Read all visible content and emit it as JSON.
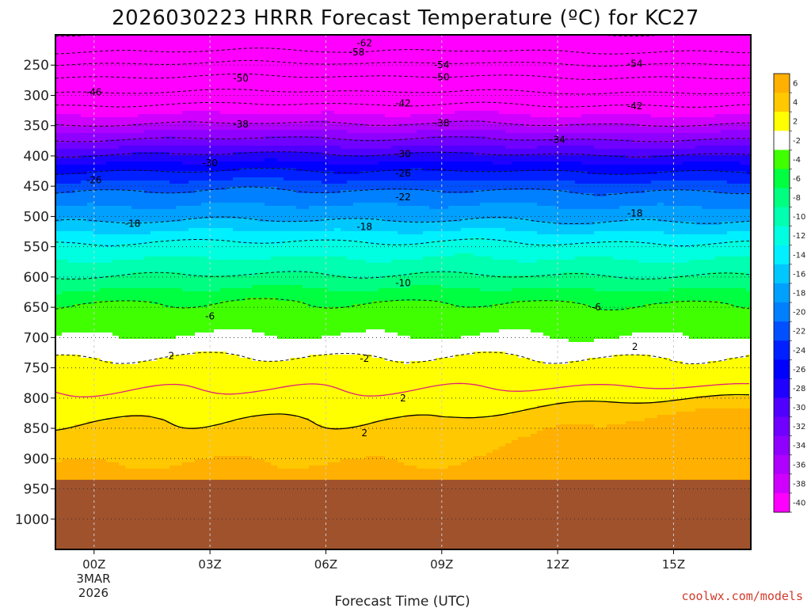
{
  "chart_data": {
    "type": "heatmap",
    "title": "2026030223 HRRR Forecast Temperature (ºC) for KC27",
    "xlabel": "Forecast Time (UTC)",
    "ylabel": "",
    "watermark": "coolwx.com/models",
    "date_label": [
      "3MAR",
      "2026"
    ],
    "x_range_hours": [
      -1,
      17
    ],
    "x_ticks": [
      {
        "h": 0,
        "label": "00Z"
      },
      {
        "h": 3,
        "label": "03Z"
      },
      {
        "h": 6,
        "label": "06Z"
      },
      {
        "h": 9,
        "label": "09Z"
      },
      {
        "h": 12,
        "label": "12Z"
      },
      {
        "h": 15,
        "label": "15Z"
      }
    ],
    "y_range_hpa": [
      200,
      1050
    ],
    "y_ticks": [
      250,
      300,
      350,
      400,
      450,
      500,
      550,
      600,
      650,
      700,
      750,
      800,
      850,
      900,
      950,
      1000
    ],
    "ground_top_hpa": 935,
    "ground_color": "#a0522d",
    "colorbar": {
      "labels": [
        "6",
        "4",
        "2",
        "-2",
        "-4",
        "-6",
        "-8",
        "-10",
        "-12",
        "-14",
        "-16",
        "-18",
        "-20",
        "-22",
        "-24",
        "-26",
        "-28",
        "-30",
        "-32",
        "-34",
        "-36",
        "-38",
        "-40"
      ],
      "colors": [
        "#ffb000",
        "#ffc800",
        "#ffff00",
        "#ffffff",
        "#40ff00",
        "#00ff40",
        "#00ff80",
        "#00ffb0",
        "#00ffe0",
        "#00f0ff",
        "#00c8ff",
        "#00a0ff",
        "#0080ff",
        "#0050ff",
        "#0020ff",
        "#0000ff",
        "#2000ff",
        "#5000ff",
        "#7000ff",
        "#9000ff",
        "#b000ff",
        "#d000ff",
        "#ff00ff"
      ]
    },
    "thresholds": [
      -40,
      -38,
      -36,
      -34,
      -32,
      -30,
      -28,
      -26,
      -24,
      -22,
      -20,
      -18,
      -16,
      -14,
      -12,
      -10,
      -8,
      -6,
      -4,
      -2,
      2,
      4,
      6
    ],
    "profile": [
      {
        "p": 200,
        "t": -62
      },
      {
        "p": 230,
        "t": -58
      },
      {
        "p": 250,
        "t": -54
      },
      {
        "p": 272,
        "t": -50
      },
      {
        "p": 297,
        "t": -46
      },
      {
        "p": 318,
        "t": -42
      },
      {
        "p": 350,
        "t": -38
      },
      {
        "p": 375,
        "t": -34
      },
      {
        "p": 400,
        "t": -30
      },
      {
        "p": 428,
        "t": -26
      },
      {
        "p": 460,
        "t": -22
      },
      {
        "p": 510,
        "t": -18
      },
      {
        "p": 545,
        "t": -14
      },
      {
        "p": 600,
        "t": -10
      },
      {
        "p": 645,
        "t": -6
      },
      {
        "p": 700,
        "t": -4
      },
      {
        "p": 735,
        "t": -2
      },
      {
        "p": 790,
        "t": 0
      },
      {
        "p": 840,
        "t": 2
      },
      {
        "p": 880,
        "t": 3
      },
      {
        "p": 940,
        "t": 5
      }
    ],
    "time_shift": [
      {
        "h": -1,
        "dp": 0
      },
      {
        "h": 2,
        "dp": -3
      },
      {
        "h": 4,
        "dp": -6
      },
      {
        "h": 7,
        "dp": -2
      },
      {
        "h": 10,
        "dp": -5
      },
      {
        "h": 13,
        "dp": 0
      },
      {
        "h": 17,
        "dp": -2
      }
    ],
    "warm_layer": {
      "p_top": 775,
      "p_bottom": 935,
      "amp_c": 4,
      "start_h": 9,
      "peak_h": 17
    },
    "contour_labels": [
      {
        "h": 7.0,
        "p": 214,
        "label": "-62"
      },
      {
        "h": 6.8,
        "p": 229,
        "label": "-58"
      },
      {
        "h": 9.0,
        "p": 250,
        "label": "-54"
      },
      {
        "h": 14.0,
        "p": 248,
        "label": "-54"
      },
      {
        "h": 3.8,
        "p": 272,
        "label": "-50"
      },
      {
        "h": 9.0,
        "p": 270,
        "label": "-50"
      },
      {
        "h": 0.0,
        "p": 295,
        "label": "-46"
      },
      {
        "h": 8.0,
        "p": 313,
        "label": "-42"
      },
      {
        "h": 14.0,
        "p": 318,
        "label": "-42"
      },
      {
        "h": 3.8,
        "p": 348,
        "label": "-38"
      },
      {
        "h": 9.0,
        "p": 346,
        "label": "-38"
      },
      {
        "h": 12.0,
        "p": 373,
        "label": "-34"
      },
      {
        "h": 3.0,
        "p": 412,
        "label": "-30"
      },
      {
        "h": 8.0,
        "p": 397,
        "label": "-30"
      },
      {
        "h": 0.0,
        "p": 440,
        "label": "-26"
      },
      {
        "h": 8.0,
        "p": 429,
        "label": "-26"
      },
      {
        "h": 8.0,
        "p": 468,
        "label": "-22"
      },
      {
        "h": 1.0,
        "p": 512,
        "label": "-18"
      },
      {
        "h": 7.0,
        "p": 517,
        "label": "-18"
      },
      {
        "h": 14.0,
        "p": 495,
        "label": "-18"
      },
      {
        "h": 8.0,
        "p": 610,
        "label": "-10"
      },
      {
        "h": 3.0,
        "p": 665,
        "label": "-6"
      },
      {
        "h": 13.0,
        "p": 650,
        "label": "-6"
      },
      {
        "h": 2.0,
        "p": 730,
        "label": "2"
      },
      {
        "h": 7.0,
        "p": 735,
        "label": "-2"
      },
      {
        "h": 14.0,
        "p": 715,
        "label": "2"
      },
      {
        "h": 8.0,
        "p": 800,
        "label": "2"
      },
      {
        "h": 7.0,
        "p": 858,
        "label": "2"
      }
    ]
  }
}
